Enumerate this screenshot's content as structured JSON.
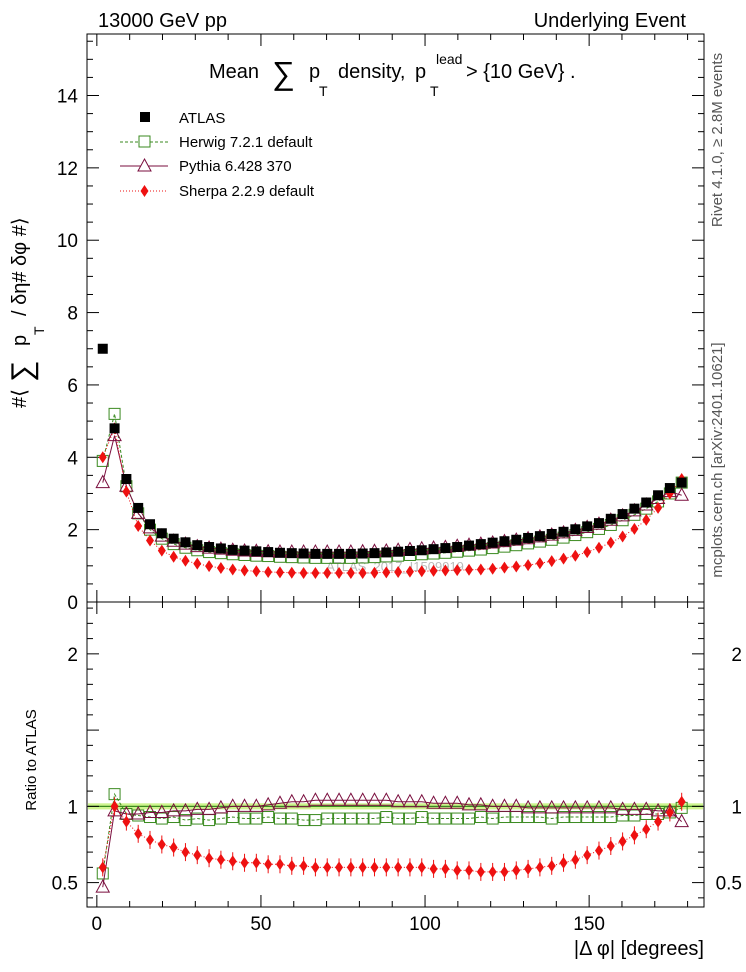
{
  "header": {
    "left": "13000 GeV pp",
    "right": "Underlying Event"
  },
  "side_labels": {
    "rivet": "Rivet 4.1.0, ≥ 2.8M events",
    "site": "mcplots.cern.ch [arXiv:2401.10621]"
  },
  "watermark": "ATLAS_2017_I1509919",
  "chart_data": [
    {
      "type": "scatter",
      "title_parts": {
        "mean": "Mean",
        "sum": "∑",
        "p": "p",
        "T": "T",
        "density": "density,",
        "p2": "p",
        "lead": "lead",
        "T2": "T",
        "cut": "> {10 GeV} ."
      },
      "ylabel_parts": {
        "open": "#⟨",
        "sum": "∑",
        "p": "p",
        "T": "T",
        "rest": "/ δη# δφ #⟩"
      },
      "xlim": [
        -3,
        185
      ],
      "ylim": [
        0,
        15.7
      ],
      "yticks": [
        0,
        2,
        4,
        6,
        8,
        10,
        12,
        14
      ],
      "yticklabels": [
        "0",
        "2",
        "4",
        "6",
        "8",
        "10",
        "12",
        "14"
      ],
      "legend": {
        "position": "top-left",
        "entries": [
          "ATLAS",
          "Herwig 7.2.1 default",
          "Pythia 6.428 370",
          "Sherpa 2.2.9 default"
        ]
      },
      "x": [
        1.8,
        5.4,
        9,
        12.6,
        16.2,
        19.8,
        23.4,
        27,
        30.6,
        34.2,
        37.8,
        41.4,
        45,
        48.6,
        52.2,
        55.8,
        59.4,
        63,
        66.6,
        70.2,
        73.8,
        77.4,
        81,
        84.6,
        88.2,
        91.8,
        95.4,
        99,
        102.6,
        106.2,
        109.8,
        113.4,
        117,
        120.6,
        124.2,
        127.8,
        131.4,
        135,
        138.6,
        142.2,
        145.8,
        149.4,
        153,
        156.6,
        160.2,
        163.8,
        167.4,
        171,
        174.6,
        178.2
      ],
      "series": [
        {
          "name": "ATLAS",
          "color": "#000000",
          "marker": "filled-square",
          "values": [
            7.0,
            4.8,
            3.4,
            2.6,
            2.15,
            1.9,
            1.75,
            1.65,
            1.57,
            1.52,
            1.48,
            1.44,
            1.42,
            1.4,
            1.38,
            1.36,
            1.35,
            1.34,
            1.33,
            1.33,
            1.33,
            1.33,
            1.34,
            1.35,
            1.37,
            1.39,
            1.41,
            1.43,
            1.46,
            1.49,
            1.52,
            1.56,
            1.6,
            1.64,
            1.68,
            1.72,
            1.77,
            1.82,
            1.88,
            1.94,
            2.01,
            2.09,
            2.18,
            2.3,
            2.43,
            2.58,
            2.75,
            2.95,
            3.15,
            3.3
          ]
        },
        {
          "name": "Herwig 7.2.1 default",
          "color": "#3a8a1f",
          "marker": "open-square",
          "values": [
            3.9,
            5.2,
            3.2,
            2.45,
            2.0,
            1.75,
            1.6,
            1.5,
            1.43,
            1.38,
            1.35,
            1.32,
            1.3,
            1.28,
            1.27,
            1.25,
            1.24,
            1.23,
            1.22,
            1.22,
            1.22,
            1.22,
            1.23,
            1.24,
            1.26,
            1.28,
            1.3,
            1.32,
            1.34,
            1.36,
            1.39,
            1.42,
            1.45,
            1.49,
            1.53,
            1.57,
            1.62,
            1.67,
            1.72,
            1.78,
            1.85,
            1.93,
            2.02,
            2.13,
            2.26,
            2.41,
            2.58,
            2.78,
            3.0,
            3.3
          ]
        },
        {
          "name": "Pythia 6.428 370",
          "color": "#7a0e3e",
          "marker": "open-triangle",
          "values": [
            3.3,
            4.6,
            3.2,
            2.45,
            2.05,
            1.82,
            1.68,
            1.6,
            1.53,
            1.49,
            1.46,
            1.43,
            1.41,
            1.4,
            1.39,
            1.38,
            1.38,
            1.38,
            1.38,
            1.38,
            1.38,
            1.38,
            1.39,
            1.4,
            1.41,
            1.43,
            1.45,
            1.47,
            1.49,
            1.51,
            1.54,
            1.57,
            1.6,
            1.63,
            1.67,
            1.71,
            1.75,
            1.8,
            1.85,
            1.91,
            1.98,
            2.06,
            2.15,
            2.26,
            2.38,
            2.52,
            2.68,
            2.86,
            3.05,
            2.95
          ]
        },
        {
          "name": "Sherpa 2.2.9 default",
          "color": "#ee1111",
          "marker": "filled-diamond",
          "values": [
            4.0,
            4.8,
            3.05,
            2.1,
            1.7,
            1.42,
            1.25,
            1.14,
            1.06,
            0.99,
            0.94,
            0.9,
            0.87,
            0.85,
            0.83,
            0.82,
            0.81,
            0.8,
            0.8,
            0.8,
            0.8,
            0.8,
            0.8,
            0.81,
            0.82,
            0.83,
            0.84,
            0.85,
            0.86,
            0.87,
            0.88,
            0.89,
            0.9,
            0.92,
            0.95,
            0.98,
            1.02,
            1.07,
            1.13,
            1.2,
            1.28,
            1.38,
            1.5,
            1.64,
            1.81,
            2.02,
            2.27,
            2.6,
            3.0,
            3.4
          ]
        }
      ]
    },
    {
      "type": "scatter",
      "ylabel": "Ratio to ATLAS",
      "xlabel": "|Δ φ| [degrees]",
      "xlim": [
        -3,
        185
      ],
      "ylim": [
        0.34,
        2.34
      ],
      "xticks": [
        0,
        50,
        100,
        150
      ],
      "xticklabels": [
        "0",
        "50",
        "100",
        "150"
      ],
      "yticks": [
        0.5,
        1,
        2
      ],
      "yticklabels": [
        "0.5",
        "1",
        "2"
      ],
      "reference_band": [
        0.98,
        1.02
      ],
      "x": [
        1.8,
        5.4,
        9,
        12.6,
        16.2,
        19.8,
        23.4,
        27,
        30.6,
        34.2,
        37.8,
        41.4,
        45,
        48.6,
        52.2,
        55.8,
        59.4,
        63,
        66.6,
        70.2,
        73.8,
        77.4,
        81,
        84.6,
        88.2,
        91.8,
        95.4,
        99,
        102.6,
        106.2,
        109.8,
        113.4,
        117,
        120.6,
        124.2,
        127.8,
        131.4,
        135,
        138.6,
        142.2,
        145.8,
        149.4,
        153,
        156.6,
        160.2,
        163.8,
        167.4,
        171,
        174.6,
        178.2
      ],
      "series": [
        {
          "name": "Herwig 7.2.1 default",
          "color": "#3a8a1f",
          "marker": "open-square",
          "values": [
            0.56,
            1.08,
            0.95,
            0.94,
            0.93,
            0.92,
            0.93,
            0.91,
            0.92,
            0.91,
            0.92,
            0.93,
            0.92,
            0.92,
            0.93,
            0.92,
            0.92,
            0.91,
            0.91,
            0.92,
            0.92,
            0.92,
            0.92,
            0.92,
            0.93,
            0.92,
            0.92,
            0.93,
            0.92,
            0.92,
            0.92,
            0.92,
            0.93,
            0.92,
            0.93,
            0.93,
            0.93,
            0.93,
            0.92,
            0.93,
            0.93,
            0.93,
            0.93,
            0.93,
            0.94,
            0.94,
            0.95,
            0.95,
            0.96,
            0.99
          ]
        },
        {
          "name": "Pythia 6.428 370",
          "color": "#7a0e3e",
          "marker": "open-triangle",
          "values": [
            0.47,
            0.97,
            0.95,
            0.95,
            0.96,
            0.96,
            0.97,
            0.97,
            0.98,
            0.98,
            0.99,
            1.0,
            1.0,
            1.0,
            1.01,
            1.02,
            1.03,
            1.03,
            1.04,
            1.04,
            1.04,
            1.04,
            1.04,
            1.04,
            1.04,
            1.03,
            1.03,
            1.03,
            1.02,
            1.02,
            1.02,
            1.01,
            1.01,
            1.0,
            1.0,
            1.0,
            0.99,
            0.99,
            0.99,
            0.99,
            0.99,
            0.99,
            0.99,
            0.99,
            0.98,
            0.98,
            0.98,
            0.97,
            0.97,
            0.9
          ]
        },
        {
          "name": "Sherpa 2.2.9 default",
          "color": "#ee1111",
          "marker": "filled-diamond",
          "values": [
            0.6,
            1.0,
            0.9,
            0.82,
            0.78,
            0.75,
            0.73,
            0.7,
            0.68,
            0.66,
            0.65,
            0.64,
            0.63,
            0.63,
            0.62,
            0.62,
            0.61,
            0.61,
            0.6,
            0.6,
            0.6,
            0.6,
            0.6,
            0.6,
            0.6,
            0.6,
            0.6,
            0.6,
            0.59,
            0.59,
            0.58,
            0.58,
            0.57,
            0.57,
            0.57,
            0.58,
            0.59,
            0.6,
            0.61,
            0.63,
            0.65,
            0.68,
            0.71,
            0.74,
            0.77,
            0.81,
            0.85,
            0.9,
            0.96,
            1.03
          ]
        }
      ]
    }
  ]
}
